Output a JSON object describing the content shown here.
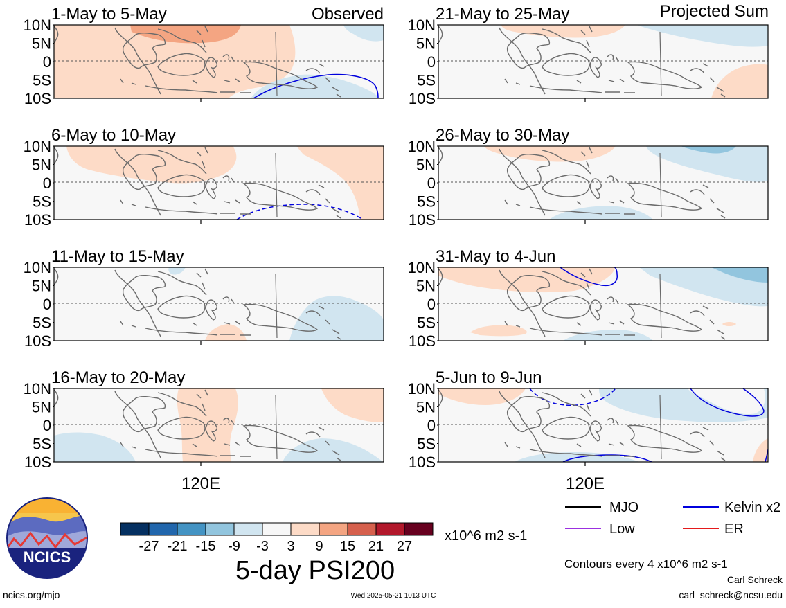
{
  "corner_labels": {
    "left": "Observed",
    "right": "Projected Sum"
  },
  "latitude_ticks": [
    "10N",
    "5N",
    "0",
    "5S",
    "10S"
  ],
  "longitude_label": "120E",
  "panels": [
    {
      "id": "p1",
      "title": "1-May to 5-May"
    },
    {
      "id": "p2",
      "title": "6-May to 10-May"
    },
    {
      "id": "p3",
      "title": "11-May to 15-May"
    },
    {
      "id": "p4",
      "title": "16-May to 20-May"
    },
    {
      "id": "p5",
      "title": "21-May to 25-May"
    },
    {
      "id": "p6",
      "title": "26-May to 30-May"
    },
    {
      "id": "p7",
      "title": "31-May to 4-Jun"
    },
    {
      "id": "p8",
      "title": "5-Jun to 9-Jun"
    }
  ],
  "colorbar": {
    "labels": [
      "-27",
      "-21",
      "-15",
      "-9",
      "-3",
      "3",
      "9",
      "15",
      "21",
      "27"
    ],
    "colors": [
      "#053061",
      "#2166ac",
      "#4393c3",
      "#92c5de",
      "#d1e5f0",
      "#f7f7f7",
      "#fddbc7",
      "#f4a582",
      "#d6604d",
      "#b2182b",
      "#67001f"
    ],
    "units": "x10^6 m2 s-1"
  },
  "title": "5-day PSI200",
  "legend": [
    {
      "label": "MJO",
      "color": "#000000"
    },
    {
      "label": "Kelvin x2",
      "color": "#0000dd"
    },
    {
      "label": "Low",
      "color": "#9b30e0"
    },
    {
      "label": "ER",
      "color": "#e41a1c"
    }
  ],
  "contour_note": "Contours every 4 x10^6 m2 s-1",
  "logo": {
    "text": "NCICS"
  },
  "footer": {
    "left": "ncics.org/mjo",
    "center": "Wed 2025-05-21 1013 UTC",
    "author": "Carl Schreck",
    "email": "carl_schreck@ncsu.edu"
  }
}
